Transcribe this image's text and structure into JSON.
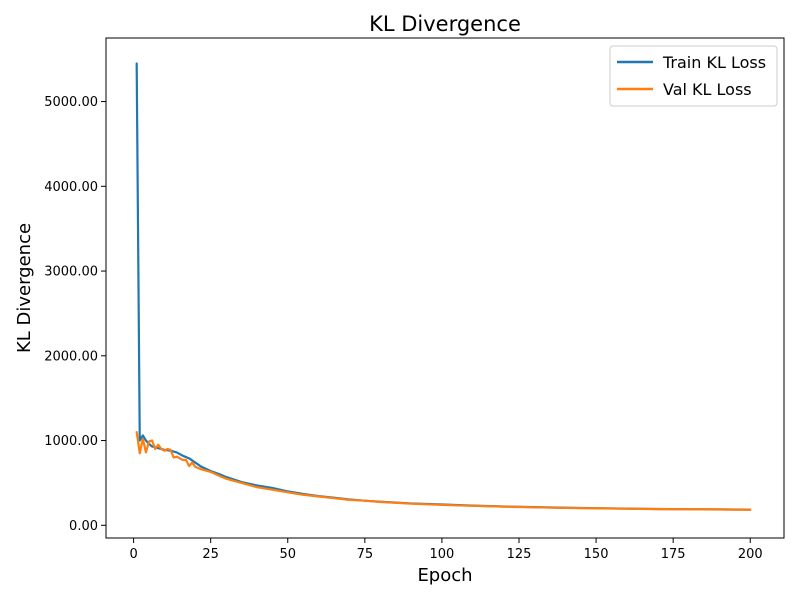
{
  "chart_data": {
    "type": "line",
    "title": "KL Divergence",
    "xlabel": "Epoch",
    "ylabel": "KL Divergence",
    "xlim": [
      -8.95,
      210.95
    ],
    "ylim": [
      -150,
      5750
    ],
    "xticks": [
      0,
      25,
      50,
      75,
      100,
      125,
      150,
      175,
      200
    ],
    "xtick_labels": [
      "0",
      "25",
      "50",
      "75",
      "100",
      "125",
      "150",
      "175",
      "200"
    ],
    "yticks": [
      0,
      1000,
      2000,
      3000,
      4000,
      5000
    ],
    "ytick_labels": [
      "0.00",
      "1000.00",
      "2000.00",
      "3000.00",
      "4000.00",
      "5000.00"
    ],
    "grid": false,
    "legend": "top-right",
    "series": [
      {
        "name": "Train KL Loss",
        "color": "#1f77b4",
        "x": [
          1,
          2,
          3,
          4,
          5,
          6,
          7,
          8,
          9,
          10,
          12,
          14,
          16,
          18,
          20,
          22,
          25,
          28,
          30,
          35,
          40,
          45,
          50,
          55,
          60,
          65,
          70,
          75,
          80,
          90,
          100,
          110,
          120,
          130,
          140,
          150,
          160,
          170,
          180,
          190,
          200
        ],
        "y": [
          5450,
          1000,
          1060,
          1000,
          960,
          930,
          920,
          910,
          900,
          890,
          880,
          860,
          820,
          790,
          740,
          690,
          640,
          600,
          570,
          510,
          470,
          440,
          400,
          370,
          345,
          325,
          305,
          290,
          278,
          258,
          245,
          232,
          222,
          214,
          207,
          202,
          197,
          192,
          190,
          188,
          185
        ]
      },
      {
        "name": "Val KL Loss",
        "color": "#ff7f0e",
        "x": [
          1,
          2,
          3,
          4,
          5,
          6,
          7,
          8,
          9,
          10,
          11,
          12,
          13,
          14,
          15,
          16,
          17,
          18,
          19,
          20,
          22,
          25,
          28,
          30,
          35,
          40,
          45,
          50,
          55,
          60,
          65,
          70,
          75,
          80,
          90,
          100,
          110,
          120,
          130,
          140,
          150,
          160,
          170,
          180,
          190,
          200
        ],
        "y": [
          1100,
          850,
          1020,
          860,
          990,
          1000,
          900,
          950,
          900,
          880,
          900,
          890,
          800,
          810,
          790,
          770,
          770,
          700,
          740,
          690,
          660,
          630,
          580,
          550,
          500,
          450,
          420,
          390,
          360,
          340,
          320,
          300,
          290,
          275,
          255,
          240,
          230,
          220,
          212,
          205,
          200,
          196,
          191,
          189,
          186,
          183
        ]
      }
    ]
  }
}
